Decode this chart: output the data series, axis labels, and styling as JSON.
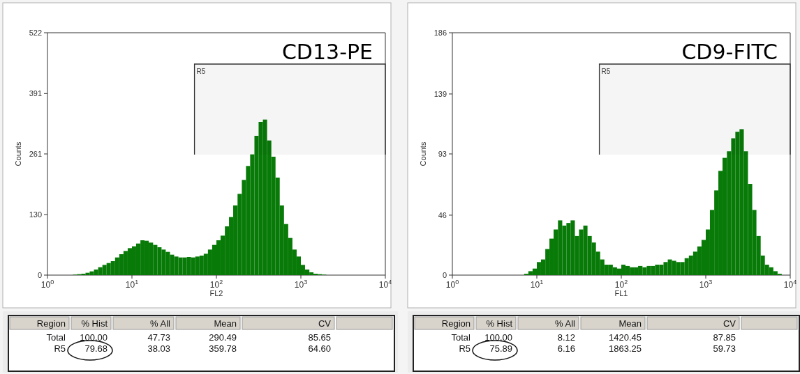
{
  "chart_data": [
    {
      "type": "histogram",
      "title": "CD13-PE",
      "xlabel": "FL2",
      "ylabel": "Counts",
      "log": "x",
      "color": "#087a08",
      "xlim": [
        1,
        10000
      ],
      "xticks": [
        {
          "value": 1,
          "label": "10$^{0}$"
        },
        {
          "value": 10,
          "label": "10$^{1}$"
        },
        {
          "value": 100,
          "label": "10$^{2}$"
        },
        {
          "value": 1000,
          "label": "10$^{3}$"
        },
        {
          "value": 10000,
          "label": "10$^{4}$"
        }
      ],
      "ylim": [
        0,
        522
      ],
      "yticks": [
        0,
        130,
        261,
        391,
        522
      ],
      "bins": [
        1,
        1.12,
        1.26,
        1.41,
        1.58,
        1.78,
        2,
        2.24,
        2.51,
        2.82,
        3.16,
        3.55,
        3.98,
        4.47,
        5.01,
        5.62,
        6.31,
        7.08,
        7.94,
        8.91,
        10,
        11.2,
        12.6,
        14.1,
        15.8,
        17.8,
        20,
        22.4,
        25.1,
        28.2,
        31.6,
        35.5,
        39.8,
        44.7,
        50.1,
        56.2,
        63.1,
        70.8,
        79.4,
        89.1,
        100,
        112,
        126,
        141,
        158,
        178,
        200,
        224,
        251,
        282,
        316,
        355,
        398,
        447,
        501,
        562,
        631,
        708,
        794,
        891,
        1000,
        1120,
        1260,
        1410,
        1580,
        1780,
        2000,
        2240,
        2510,
        2820,
        3160,
        3550,
        3980,
        4470,
        5010,
        5620,
        6310,
        7080,
        7940,
        8910,
        10000
      ],
      "values": [
        0,
        0,
        0,
        0,
        0,
        0,
        1,
        2,
        3,
        5,
        8,
        12,
        17,
        22,
        26,
        30,
        38,
        45,
        52,
        58,
        62,
        68,
        75,
        74,
        70,
        65,
        60,
        55,
        50,
        44,
        40,
        38,
        38,
        39,
        38,
        40,
        42,
        46,
        55,
        65,
        75,
        85,
        105,
        125,
        150,
        175,
        205,
        235,
        260,
        300,
        330,
        335,
        290,
        255,
        210,
        150,
        110,
        80,
        55,
        40,
        22,
        12,
        6,
        3,
        2,
        1,
        0,
        0,
        0,
        0,
        0,
        0,
        0,
        0,
        0,
        0,
        0,
        0,
        0,
        0
      ],
      "bands": [
        {
          "axis": "x",
          "from": 55,
          "to": 10000,
          "label": "R5"
        }
      ],
      "annotations": [
        "Region",
        "% Hist",
        "% All",
        "Mean",
        "CV",
        "Total",
        "100.00",
        "47.73",
        "290.49",
        "85.65",
        "R5",
        "79.68",
        "38.03",
        "359.78",
        "64.60"
      ]
    },
    {
      "type": "histogram",
      "title": "CD9-FITC",
      "xlabel": "FL1",
      "ylabel": "Counts",
      "log": "x",
      "color": "#087a08",
      "xlim": [
        1,
        10000
      ],
      "xticks": [
        {
          "value": 1,
          "label": "10$^{0}$"
        },
        {
          "value": 10,
          "label": "10$^{1}$"
        },
        {
          "value": 100,
          "label": "10$^{2}$"
        },
        {
          "value": 1000,
          "label": "10$^{3}$"
        },
        {
          "value": 10000,
          "label": "10$^{4}$"
        }
      ],
      "ylim": [
        0,
        186
      ],
      "yticks": [
        0,
        46,
        93,
        139,
        186
      ],
      "bins": [
        1,
        1.12,
        1.26,
        1.41,
        1.58,
        1.78,
        2,
        2.24,
        2.51,
        2.82,
        3.16,
        3.55,
        3.98,
        4.47,
        5.01,
        5.62,
        6.31,
        7.08,
        7.94,
        8.91,
        10,
        11.2,
        12.6,
        14.1,
        15.8,
        17.8,
        20,
        22.4,
        25.1,
        28.2,
        31.6,
        35.5,
        39.8,
        44.7,
        50.1,
        56.2,
        63.1,
        70.8,
        79.4,
        89.1,
        100,
        112,
        126,
        141,
        158,
        178,
        200,
        224,
        251,
        282,
        316,
        355,
        398,
        447,
        501,
        562,
        631,
        708,
        794,
        891,
        1000,
        1120,
        1260,
        1410,
        1580,
        1780,
        2000,
        2240,
        2510,
        2820,
        3160,
        3550,
        3980,
        4470,
        5010,
        5620,
        6310,
        7080,
        7940,
        8910,
        10000
      ],
      "values": [
        0,
        0,
        0,
        0,
        0,
        0,
        0,
        0,
        0,
        0,
        0,
        0,
        0,
        0,
        0,
        0,
        0,
        1,
        3,
        5,
        10,
        12,
        20,
        28,
        35,
        42,
        38,
        40,
        42,
        30,
        35,
        38,
        30,
        25,
        18,
        12,
        8,
        8,
        6,
        5,
        8,
        7,
        6,
        6,
        7,
        6,
        7,
        7,
        8,
        8,
        10,
        12,
        11,
        10,
        10,
        13,
        15,
        18,
        22,
        27,
        35,
        50,
        65,
        80,
        90,
        95,
        105,
        110,
        112,
        95,
        70,
        50,
        30,
        15,
        8,
        6,
        3,
        1,
        0,
        0
      ],
      "bands": [
        {
          "axis": "x",
          "from": 55,
          "to": 10000,
          "label": "R5"
        }
      ],
      "annotations": [
        "Region",
        "% Hist",
        "% All",
        "Mean",
        "CV",
        "Total",
        "100.00",
        "8.12",
        "1420.45",
        "87.85",
        "R5",
        "75.89",
        "6.16",
        "1863.25",
        "59.73"
      ]
    }
  ]
}
